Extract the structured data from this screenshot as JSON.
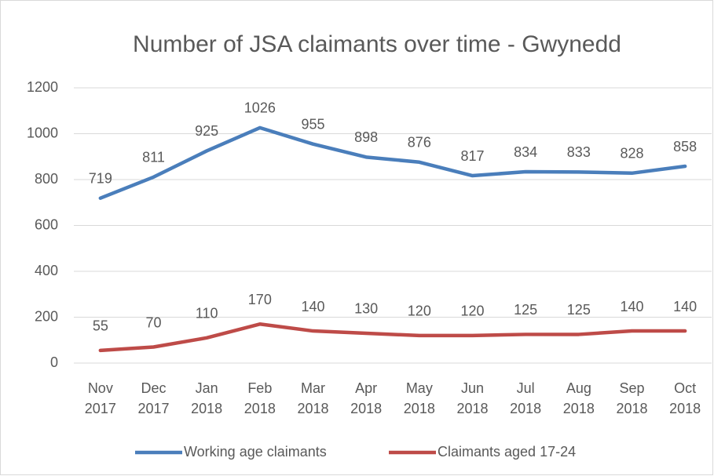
{
  "chart_data": {
    "type": "line",
    "title": "Number of JSA claimants over time - Gwynedd",
    "categories": [
      "Nov 2017",
      "Dec 2017",
      "Jan 2018",
      "Feb 2018",
      "Mar 2018",
      "Apr 2018",
      "May 2018",
      "Jun 2018",
      "Jul 2018",
      "Aug 2018",
      "Sep 2018",
      "Oct 2018"
    ],
    "series": [
      {
        "name": "Working age claimants",
        "color": "#4a7ebb",
        "values": [
          719,
          811,
          925,
          1026,
          955,
          898,
          876,
          817,
          834,
          833,
          828,
          858
        ]
      },
      {
        "name": "Claimants aged 17-24",
        "color": "#be4b48",
        "values": [
          55,
          70,
          110,
          170,
          140,
          130,
          120,
          120,
          125,
          125,
          140,
          140
        ]
      }
    ],
    "ylim": [
      0,
      1200
    ],
    "yticks": [
      0,
      200,
      400,
      600,
      800,
      1000,
      1200
    ],
    "grid": true,
    "legend": "bottom"
  }
}
